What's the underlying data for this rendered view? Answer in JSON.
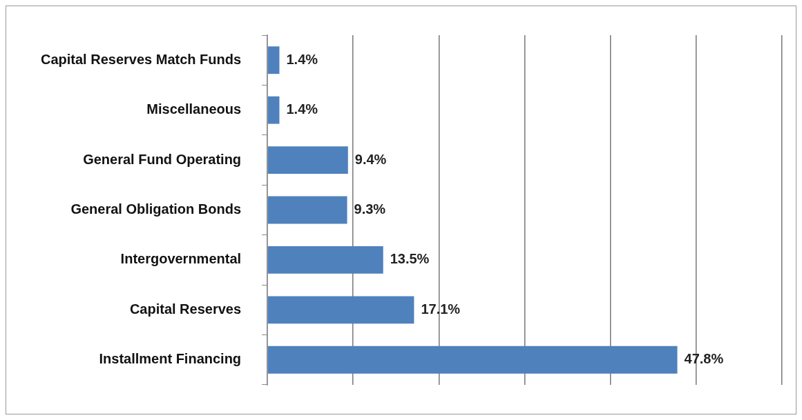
{
  "chart_data": {
    "type": "bar",
    "orientation": "horizontal",
    "categories": [
      "Capital Reserves Match Funds",
      "Miscellaneous",
      "General Fund Operating",
      "General Obligation Bonds",
      "Intergovernmental",
      "Capital Reserves",
      "Installment Financing"
    ],
    "values": [
      1.4,
      1.4,
      9.4,
      9.3,
      13.5,
      17.1,
      47.8
    ],
    "value_labels": [
      "1.4%",
      "1.4%",
      "9.4%",
      "9.3%",
      "13.5%",
      "17.1%",
      "47.8%"
    ],
    "color": "#4f81bd",
    "xlim": [
      0,
      60
    ],
    "xticks": [
      {
        "value": 0,
        "label": null
      },
      {
        "value": 10,
        "label": null
      },
      {
        "value": 20,
        "label": null
      },
      {
        "value": 30,
        "label": null
      },
      {
        "value": 40,
        "label": null
      },
      {
        "value": 50,
        "label": null
      },
      {
        "value": 60,
        "label": null
      }
    ],
    "tick_labels": "y",
    "grid": "x",
    "legend": false
  }
}
